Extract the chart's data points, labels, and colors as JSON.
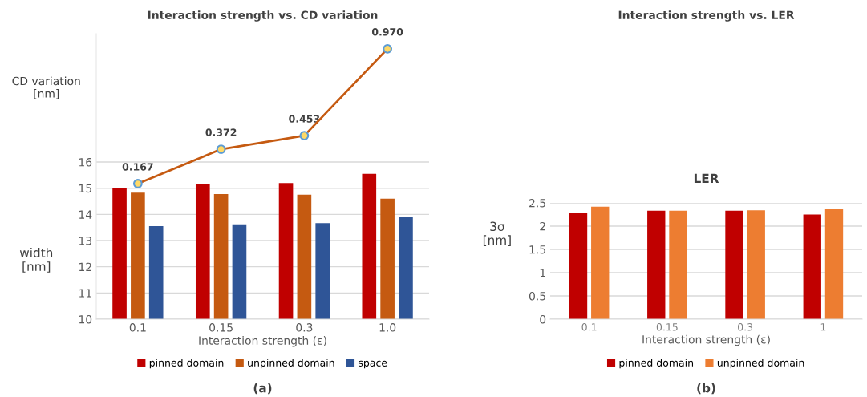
{
  "chart_data": [
    {
      "type": "bar",
      "title": "Interaction strength vs. CD variation",
      "xlabel": "Interaction strength (ε)",
      "ylabel": "width\n[nm]",
      "y2label": "CD variation\n[nm]",
      "categories": [
        "0.1",
        "0.15",
        "0.3",
        "1.0"
      ],
      "series": [
        {
          "name": "pinned domain",
          "color": "#c00000",
          "values": [
            15.0,
            15.15,
            15.2,
            15.55
          ]
        },
        {
          "name": "unpinned domain",
          "color": "#c55a11",
          "values": [
            14.83,
            14.78,
            14.75,
            14.6
          ]
        },
        {
          "name": "space",
          "color": "#2f5597",
          "values": [
            13.55,
            13.62,
            13.67,
            13.92
          ]
        },
        {
          "type": "line",
          "axis": "y2",
          "color": "#c55a11",
          "values": [
            0.167,
            0.372,
            0.453,
            0.97
          ],
          "value_labels": [
            "0.167",
            "0.372",
            "0.453",
            "0.970"
          ]
        }
      ],
      "marker": "circle",
      "ylim": [
        10,
        20.9
      ],
      "yticks": [
        10,
        11,
        12,
        13,
        14,
        15,
        16
      ],
      "y2lim": [
        -0.64,
        1.06
      ],
      "grid": "y",
      "legend": "bottom",
      "tick_labels": "xy",
      "annotations": [
        "(a)"
      ]
    },
    {
      "type": "bar",
      "title": "Interaction strength vs. LER",
      "subtitle": "LER",
      "xlabel": "Interaction strength (ε)",
      "ylabel": "3σ\n[nm]",
      "categories": [
        "0.1",
        "0.15",
        "0.3",
        "1"
      ],
      "series": [
        {
          "name": "pinned domain",
          "color": "#c00000",
          "values": [
            2.29,
            2.33,
            2.33,
            2.25
          ]
        },
        {
          "name": "unpinned domain",
          "color": "#ed7d31",
          "values": [
            2.42,
            2.33,
            2.34,
            2.38
          ]
        }
      ],
      "ylim": [
        0,
        2.5
      ],
      "yticks": [
        0,
        0.5,
        1,
        1.5,
        2,
        2.5
      ],
      "grid": "y",
      "legend": "bottom",
      "annotations": [
        "(b)"
      ]
    }
  ]
}
